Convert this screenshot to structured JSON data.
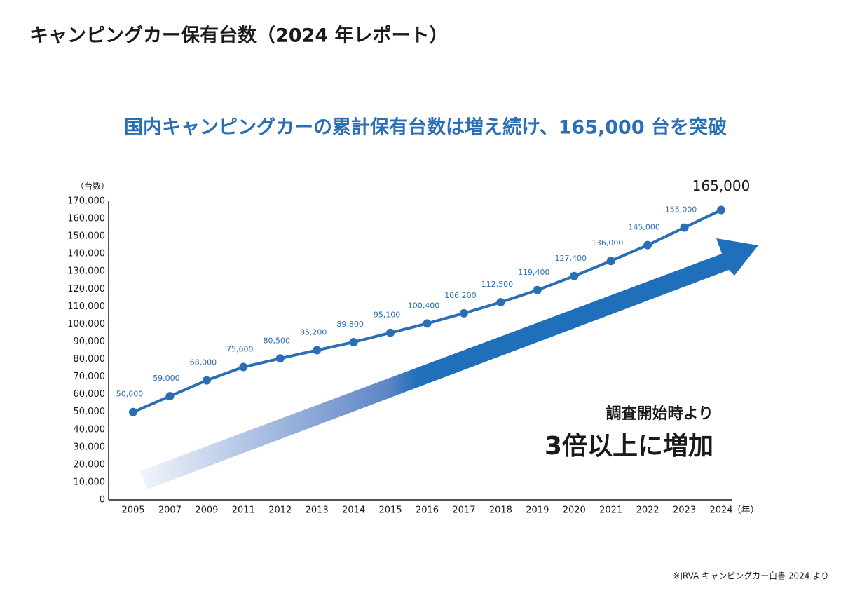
{
  "chart_data": {
    "type": "line",
    "title": "キャンピングカー保有台数（2024 年レポート）",
    "subtitle": "国内キャンピングカーの累計保有台数は増え続け、165,000 台を突破",
    "y_label": "（台数）",
    "x_label": "（年）",
    "annotations": [
      "調査開始時より",
      "3倍以上に増加"
    ],
    "source": "※JRVA キャンピングカー白書 2024 より",
    "categories": [
      "2005",
      "2007",
      "2009",
      "2011",
      "2012",
      "2013",
      "2014",
      "2015",
      "2016",
      "2017",
      "2018",
      "2019",
      "2020",
      "2021",
      "2022",
      "2023",
      "2024"
    ],
    "values": [
      50000,
      59000,
      68000,
      75600,
      80500,
      85200,
      89800,
      95100,
      100400,
      106200,
      112500,
      119400,
      127400,
      136000,
      145000,
      155000,
      165000
    ],
    "value_labels": [
      "50,000",
      "59,000",
      "68,000",
      "75,600",
      "80,500",
      "85,200",
      "89,800",
      "95,100",
      "100,400",
      "106,200",
      "112,500",
      "119,400",
      "127,400",
      "136,000",
      "145,000",
      "155,000",
      "165,000"
    ],
    "color": "#2a6fb6",
    "ylim": [
      0,
      170000
    ],
    "yticks": [
      0,
      {
        "value": 10000,
        "label": "10,000"
      },
      {
        "value": 20000,
        "label": "20,000"
      },
      {
        "value": 30000,
        "label": "30,000"
      },
      {
        "value": 40000,
        "label": "40,000"
      },
      {
        "value": 50000,
        "label": "50,000"
      },
      {
        "value": 60000,
        "label": "60,000"
      },
      {
        "value": 70000,
        "label": "70,000"
      },
      {
        "value": 80000,
        "label": "80,000"
      },
      {
        "value": 90000,
        "label": "90,000"
      },
      {
        "value": 100000,
        "label": "100,000"
      },
      {
        "value": 110000,
        "label": "110,000"
      },
      {
        "value": 120000,
        "label": "120,000"
      },
      {
        "value": 130000,
        "label": "130,000"
      },
      {
        "value": 140000,
        "label": "140,000"
      },
      {
        "value": 150000,
        "label": "150,000"
      },
      {
        "value": 160000,
        "label": "160,000"
      },
      {
        "value": 170000,
        "label": "170,000"
      }
    ],
    "grid": false
  }
}
